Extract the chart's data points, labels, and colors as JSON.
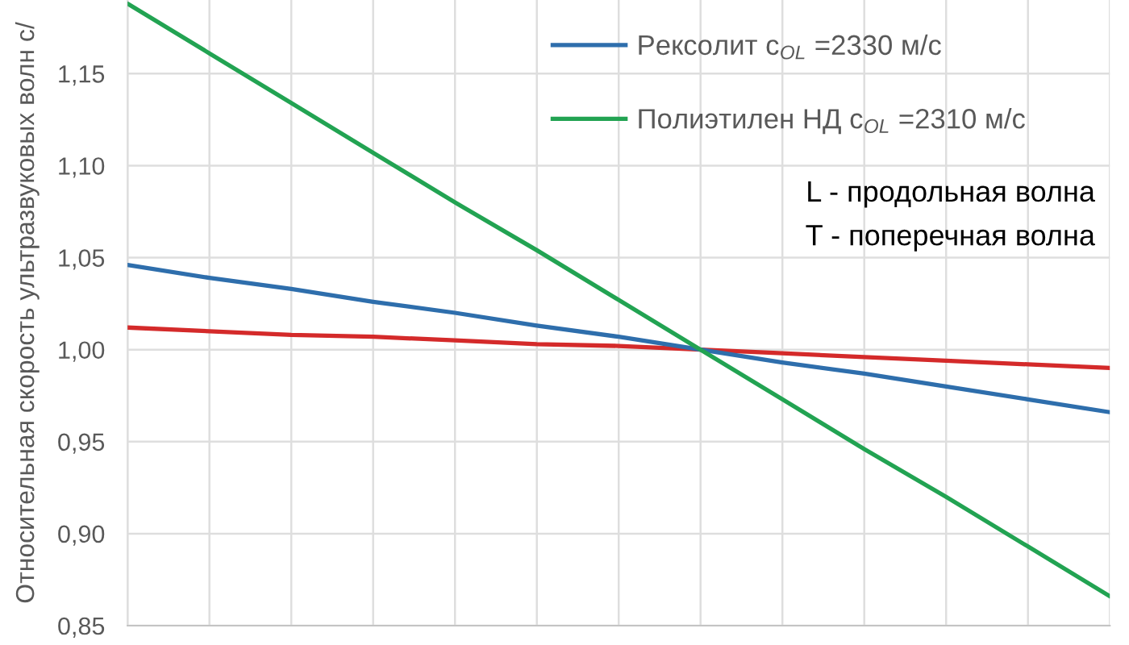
{
  "chart_data": {
    "type": "line",
    "ylabel": "Относительная скорость ультразвуковых волн c/",
    "categories": [
      null,
      null,
      null,
      null,
      null,
      null,
      null,
      null,
      null,
      null,
      null,
      null,
      null
    ],
    "series": [
      {
        "color": "#d42a2a",
        "values": [
          1.012,
          1.01,
          1.008,
          1.007,
          1.005,
          1.003,
          1.002,
          1.0,
          0.998,
          0.996,
          0.994,
          0.992,
          0.99
        ]
      },
      {
        "name": "Рексолит c$_{OL}$ =2330 м/с",
        "color": "#2e6eac",
        "values": [
          1.046,
          1.039,
          1.033,
          1.026,
          1.02,
          1.013,
          1.007,
          1.0,
          0.993,
          0.987,
          0.98,
          0.973,
          0.966
        ]
      },
      {
        "name": "Полиэтилен НД c$_{OL}$ =2310 м/с",
        "color": "#22a352",
        "values": [
          1.188,
          1.161,
          1.134,
          1.107,
          1.08,
          1.054,
          1.027,
          1.0,
          0.973,
          0.946,
          0.92,
          0.893,
          0.866
        ]
      }
    ],
    "ylim": [
      0.85,
      1.19
    ],
    "yticks": [
      {
        "value": 0.85,
        "label": "0,85"
      },
      {
        "value": 0.9,
        "label": "0,90"
      },
      {
        "value": 0.95,
        "label": "0,95"
      },
      {
        "value": 1.0,
        "label": "1,00"
      },
      {
        "value": 1.05,
        "label": "1,05"
      },
      {
        "value": 1.1,
        "label": "1,10"
      },
      {
        "value": 1.15,
        "label": "1,15"
      }
    ],
    "tick_labels": "y",
    "grid": true,
    "legend": "top right",
    "annotations": [
      "L - продольная волна",
      "T - поперечная волна"
    ]
  }
}
